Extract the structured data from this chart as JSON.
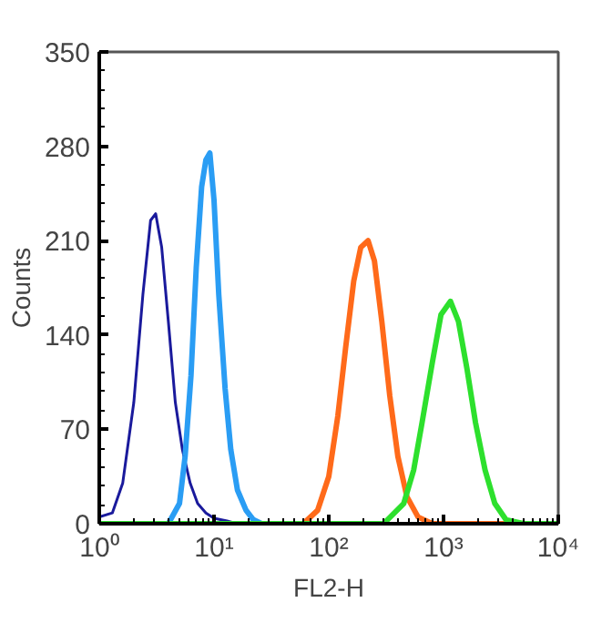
{
  "chart_data": {
    "type": "line",
    "xlabel": "FL2-H",
    "ylabel": "Counts",
    "log": "x",
    "xlim": [
      1,
      10000
    ],
    "ylim": [
      0,
      350
    ],
    "xticks": [
      {
        "value": 1,
        "label": "10⁰"
      },
      {
        "value": 10,
        "label": "10¹"
      },
      {
        "value": 100,
        "label": "10²"
      },
      {
        "value": 1000,
        "label": "10³"
      },
      {
        "value": 10000,
        "label": "10⁴"
      }
    ],
    "yticks": [
      0,
      70,
      140,
      210,
      280,
      350
    ],
    "grid": false,
    "marker": "none",
    "line_style": "solid",
    "series": [
      {
        "color": "#1a1a9c",
        "x": [
          1,
          1.3,
          1.6,
          2.0,
          2.4,
          2.8,
          3.1,
          3.5,
          4.0,
          4.6,
          5.3,
          6.2,
          7.2,
          8.5,
          10,
          13,
          16,
          30
        ],
        "values": [
          5,
          8,
          30,
          90,
          170,
          225,
          230,
          205,
          150,
          90,
          55,
          30,
          15,
          8,
          4,
          2,
          0,
          0
        ]
      },
      {
        "color": "#2a9df4",
        "x": [
          4,
          5,
          5.6,
          6.3,
          7,
          7.8,
          8.5,
          9.2,
          10,
          11,
          12.5,
          14,
          16,
          19,
          22,
          26
        ],
        "values": [
          0,
          15,
          50,
          110,
          190,
          250,
          270,
          275,
          240,
          170,
          100,
          55,
          25,
          10,
          3,
          0
        ]
      },
      {
        "color": "#ff6a1a",
        "x": [
          20,
          60,
          80,
          100,
          120,
          140,
          165,
          190,
          220,
          250,
          290,
          340,
          400,
          480,
          600,
          800,
          10000
        ],
        "values": [
          0,
          0,
          10,
          35,
          80,
          130,
          180,
          205,
          210,
          195,
          150,
          95,
          50,
          20,
          5,
          0,
          0
        ]
      },
      {
        "color": "#2de02d",
        "x": [
          1,
          300,
          450,
          550,
          650,
          800,
          950,
          1150,
          1350,
          1600,
          1900,
          2300,
          2800,
          3500,
          5000,
          10000
        ],
        "values": [
          0,
          0,
          15,
          40,
          75,
          120,
          155,
          165,
          150,
          115,
          75,
          40,
          15,
          3,
          0,
          0
        ]
      }
    ]
  }
}
